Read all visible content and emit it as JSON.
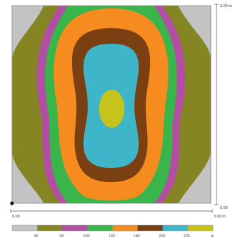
{
  "zones": [
    {
      "name": "zone-grey",
      "color": "#c3c3c3"
    },
    {
      "name": "zone-olive",
      "color": "#858524"
    },
    {
      "name": "zone-purple",
      "color": "#b24fa3"
    },
    {
      "name": "zone-green",
      "color": "#39b54a"
    },
    {
      "name": "zone-orange",
      "color": "#f68b1f"
    },
    {
      "name": "zone-brown",
      "color": "#7b4012"
    },
    {
      "name": "zone-cyan",
      "color": "#3eb5c8"
    },
    {
      "name": "zone-yellow",
      "color": "#c6c31c"
    }
  ],
  "axis": {
    "y_top_label": "3.00 m",
    "y_bottom_label": "0.00",
    "x_left_label": "0.00",
    "x_right_label": "3.00 m"
  },
  "legend": {
    "boundaries": [
      "60",
      "90",
      "100",
      "120",
      "180",
      "200",
      "220"
    ],
    "unit": "lx"
  }
}
